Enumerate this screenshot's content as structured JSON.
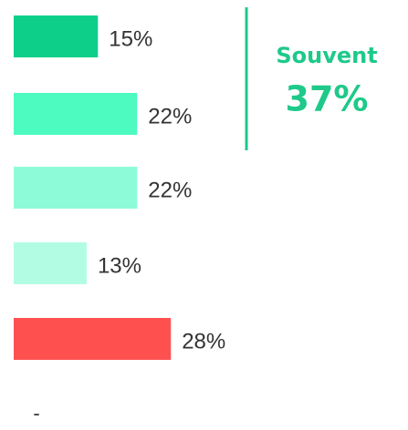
{
  "chart_data": {
    "type": "bar",
    "orientation": "horizontal",
    "categories": [
      null,
      null,
      null,
      null,
      null
    ],
    "values": [
      15,
      22,
      22,
      13,
      28
    ],
    "value_labels": [
      "15%",
      "22%",
      "22%",
      "13%",
      "28%"
    ],
    "colors": [
      "#0ecf8a",
      "#4dfbc1",
      "#8dfbd8",
      "#b3fce4",
      "#ff5050"
    ],
    "annotation": {
      "label": "Souvent",
      "value": "37%"
    },
    "footnote": "-"
  }
}
